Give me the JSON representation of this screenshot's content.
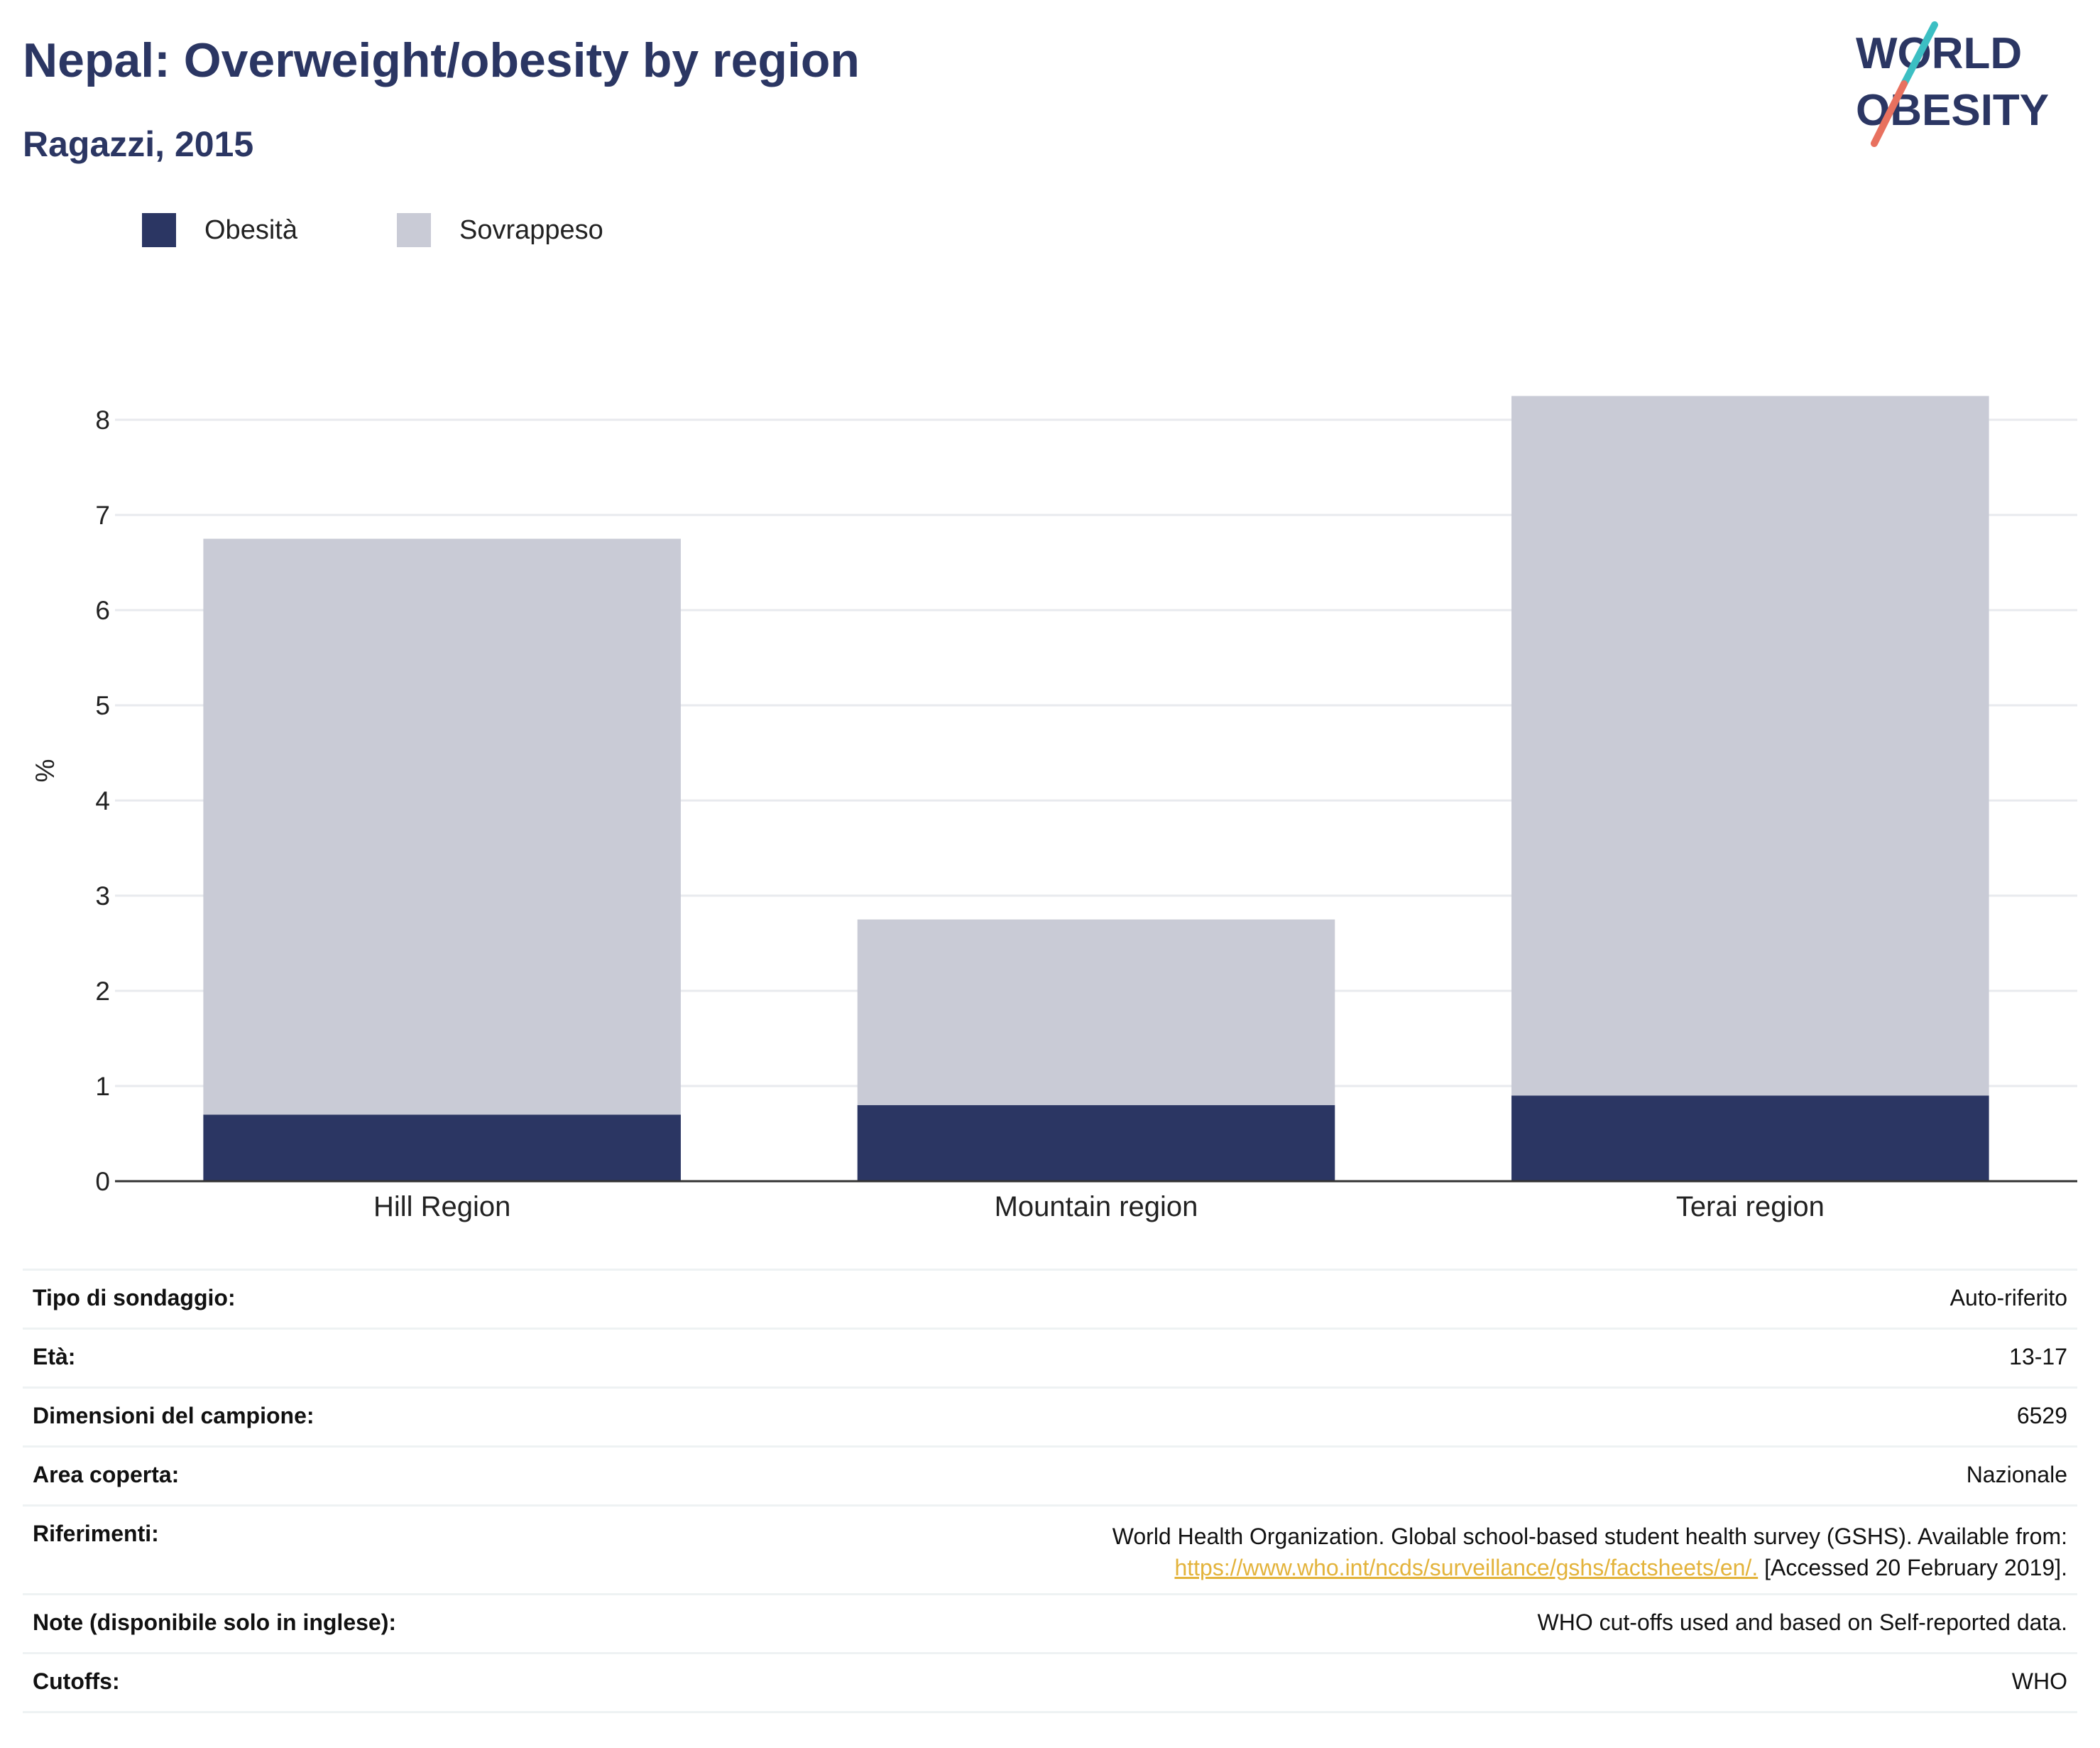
{
  "title": "Nepal: Overweight/obesity by region",
  "subtitle": "Ragazzi, 2015",
  "logo": {
    "line1": "WORLD",
    "line2": "OBESITY"
  },
  "colors": {
    "obesity": "#2b3663",
    "overweight": "#c9cbd6",
    "title": "#2b3663",
    "link": "#e3b33b",
    "logo_slash_teal": "#3cbfc3",
    "logo_slash_coral": "#e8715f"
  },
  "chart_data": {
    "type": "bar",
    "stacked": true,
    "categories": [
      "Hill Region",
      "Mountain region",
      "Terai region"
    ],
    "series": [
      {
        "name": "Obesità",
        "values": [
          0.7,
          0.8,
          0.9
        ]
      },
      {
        "name": "Sovrappeso",
        "values": [
          6.05,
          1.95,
          7.35
        ]
      }
    ],
    "totals": [
      6.75,
      2.75,
      8.25
    ],
    "ylabel": "%",
    "ylim": [
      0,
      8.5
    ],
    "yticks": [
      "0",
      "1",
      "2",
      "3",
      "4",
      "5",
      "6",
      "7",
      "8"
    ],
    "grid": true,
    "legend_position": "top-left"
  },
  "info": [
    {
      "label": "Tipo di sondaggio:",
      "value": "Auto-riferito"
    },
    {
      "label": "Età:",
      "value": "13-17"
    },
    {
      "label": "Dimensioni del campione:",
      "value": "6529"
    },
    {
      "label": "Area coperta:",
      "value": "Nazionale"
    },
    {
      "label": "Riferimenti:",
      "value_line1": "World Health Organization. Global school-based student health survey (GSHS). Available from:",
      "link": "https://www.who.int/ncds/surveillance/gshs/factsheets/en/.",
      "value_line2_suffix": " [Accessed 20 February 2019]."
    },
    {
      "label": "Note (disponibile solo in inglese):",
      "value": "WHO cut-offs used and based on Self-reported data."
    },
    {
      "label": "Cutoffs:",
      "value": "WHO"
    }
  ]
}
